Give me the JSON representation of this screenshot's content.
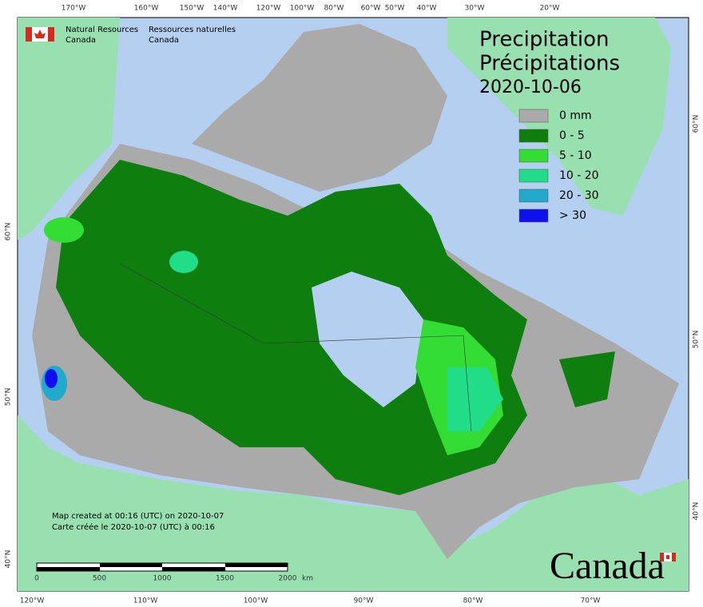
{
  "header": {
    "agency_en": "Natural Resources",
    "country_en": "Canada",
    "agency_fr": "Ressources naturelles",
    "country_fr": "Canada"
  },
  "title": {
    "en": "Precipitation",
    "fr": "Précipitations",
    "date": "2020-10-06"
  },
  "legend": [
    {
      "label": "0 mm",
      "color": "#aaaaaa"
    },
    {
      "label": "0 - 5",
      "color": "#0e7f0e"
    },
    {
      "label": "5 - 10",
      "color": "#33dd33"
    },
    {
      "label": "10 - 20",
      "color": "#22dd88"
    },
    {
      "label": "20 - 30",
      "color": "#22aacc"
    },
    {
      "label": "> 30",
      "color": "#1010ee"
    }
  ],
  "top_axis": [
    "170°W",
    "160°W",
    "150°W",
    "140°W",
    "120°W",
    "100°W",
    "80°W",
    "60°W",
    "50°W",
    "40°W",
    "30°W",
    "20°W"
  ],
  "bottom_axis": [
    "120°W",
    "110°W",
    "100°W",
    "90°W",
    "80°W",
    "70°W"
  ],
  "left_axis": [
    "60°N",
    "50°N",
    "40°N"
  ],
  "right_axis": [
    "60°N",
    "50°N",
    "40°N"
  ],
  "footer": {
    "created_en": "Map created at 00:16 (UTC) on 2020-10-07",
    "created_fr": "Carte créée le 2020-10-07 (UTC) à 00:16"
  },
  "scale_bar": {
    "ticks": [
      0,
      500,
      1000,
      1500,
      2000
    ],
    "unit": "km"
  },
  "wordmark": "Canada"
}
